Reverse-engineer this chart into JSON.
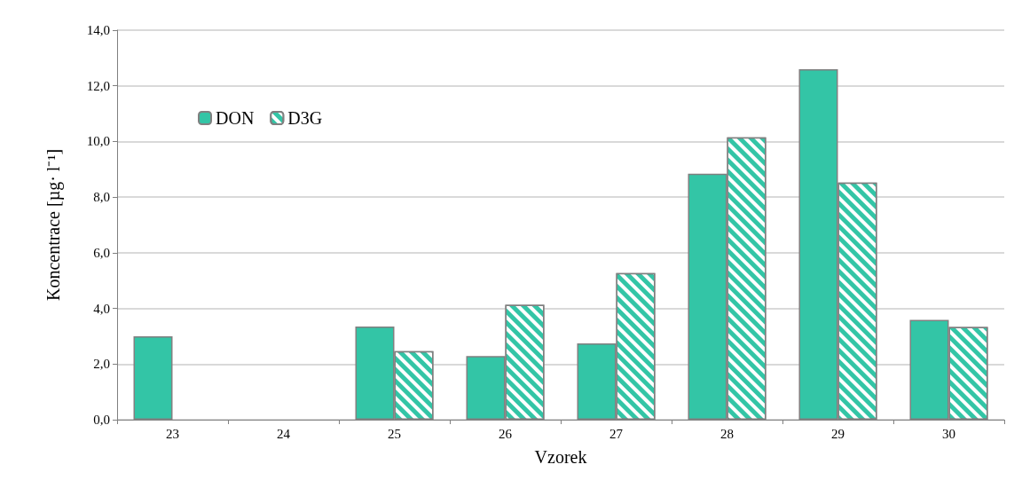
{
  "chart_data": {
    "type": "bar",
    "xlabel": "Vzorek",
    "ylabel": "Koncentrace [µg· l⁻¹]",
    "categories": [
      "23",
      "24",
      "25",
      "26",
      "27",
      "28",
      "29",
      "30"
    ],
    "series": [
      {
        "name": "DON",
        "color": "#33c5a6",
        "values": [
          3.0,
          null,
          3.35,
          2.29,
          2.74,
          8.84,
          12.6,
          3.59
        ]
      },
      {
        "name": "D3G",
        "color": "#33c5a6",
        "values": [
          null,
          null,
          2.46,
          4.13,
          5.27,
          10.15,
          8.52,
          3.33
        ]
      }
    ],
    "ylim": [
      0,
      14
    ],
    "yticks": [
      {
        "value": 0,
        "label": "0,0"
      },
      {
        "value": 2,
        "label": "2,0"
      },
      {
        "value": 4,
        "label": "4,0"
      },
      {
        "value": 6,
        "label": "6,0"
      },
      {
        "value": 8,
        "label": "8,0"
      },
      {
        "value": 10,
        "label": "10,0"
      },
      {
        "value": 12,
        "label": "12,0"
      },
      {
        "value": 14,
        "label": "14,0"
      }
    ],
    "grid": "y",
    "legend": "top left"
  }
}
